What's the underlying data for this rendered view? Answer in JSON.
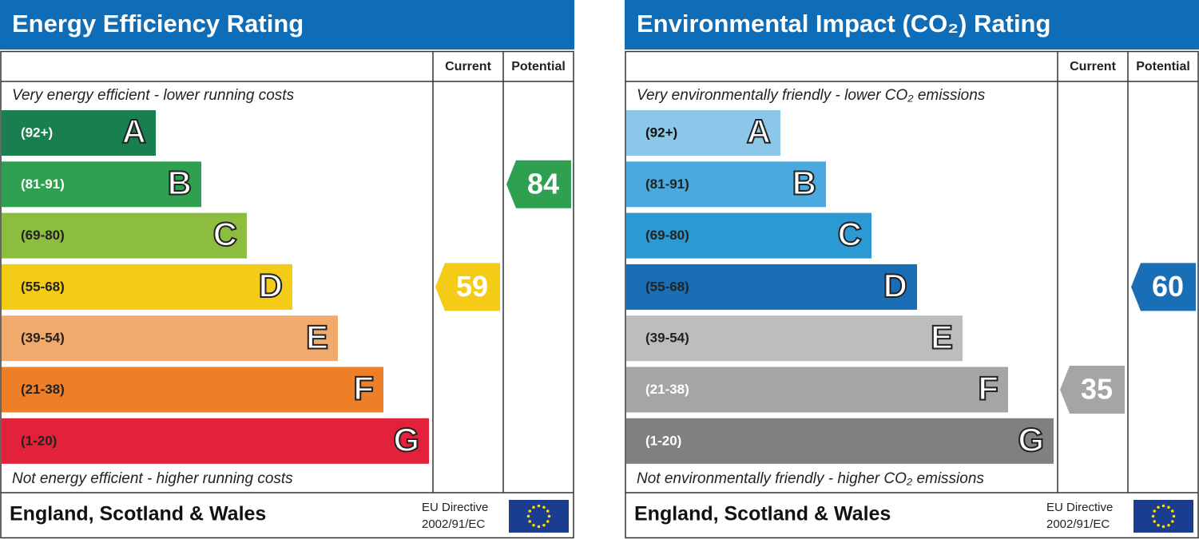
{
  "panels": [
    {
      "title": "Energy Efficiency Rating",
      "columns": [
        "Current",
        "Potential"
      ],
      "top_text": "Very energy efficient - lower running costs",
      "bottom_text": "Not energy efficient - higher running costs",
      "bands": [
        {
          "range": "(92+)",
          "letter": "A",
          "color": "#1a7f4f",
          "label_color": "#ffffff"
        },
        {
          "range": "(81-91)",
          "letter": "B",
          "color": "#2ea04f",
          "label_color": "#ffffff"
        },
        {
          "range": "(69-80)",
          "letter": "C",
          "color": "#8cbd40",
          "label_color": "#222222"
        },
        {
          "range": "(55-68)",
          "letter": "D",
          "color": "#f4cc18",
          "label_color": "#222222"
        },
        {
          "range": "(39-54)",
          "letter": "E",
          "color": "#f1a96c",
          "label_color": "#222222"
        },
        {
          "range": "(21-38)",
          "letter": "F",
          "color": "#ec7f27",
          "label_color": "#222222"
        },
        {
          "range": "(1-20)",
          "letter": "G",
          "color": "#e1223a",
          "label_color": "#222222"
        }
      ],
      "current": 59,
      "potential": 84,
      "footer": "England, Scotland & Wales",
      "directive": [
        "EU Directive",
        "2002/91/EC"
      ]
    },
    {
      "title": "Environmental Impact (CO₂) Rating",
      "columns": [
        "Current",
        "Potential"
      ],
      "top_text": "Very environmentally friendly - lower CO₂ emissions",
      "bottom_text": "Not environmentally friendly - higher CO₂ emissions",
      "bands": [
        {
          "range": "(92+)",
          "letter": "A",
          "color": "#8cc7ea",
          "label_color": "#111111"
        },
        {
          "range": "(81-91)",
          "letter": "B",
          "color": "#4aa9de",
          "label_color": "#222222"
        },
        {
          "range": "(69-80)",
          "letter": "C",
          "color": "#2b9ad3",
          "label_color": "#222222"
        },
        {
          "range": "(55-68)",
          "letter": "D",
          "color": "#1a6eb5",
          "label_color": "#222222"
        },
        {
          "range": "(39-54)",
          "letter": "E",
          "color": "#bdbdbd",
          "label_color": "#222222"
        },
        {
          "range": "(21-38)",
          "letter": "F",
          "color": "#a5a5a5",
          "label_color": "#ffffff"
        },
        {
          "range": "(1-20)",
          "letter": "G",
          "color": "#808080",
          "label_color": "#ffffff"
        }
      ],
      "current": 35,
      "potential": 60,
      "footer": "England, Scotland & Wales",
      "directive": [
        "EU Directive",
        "2002/91/EC"
      ]
    }
  ]
}
